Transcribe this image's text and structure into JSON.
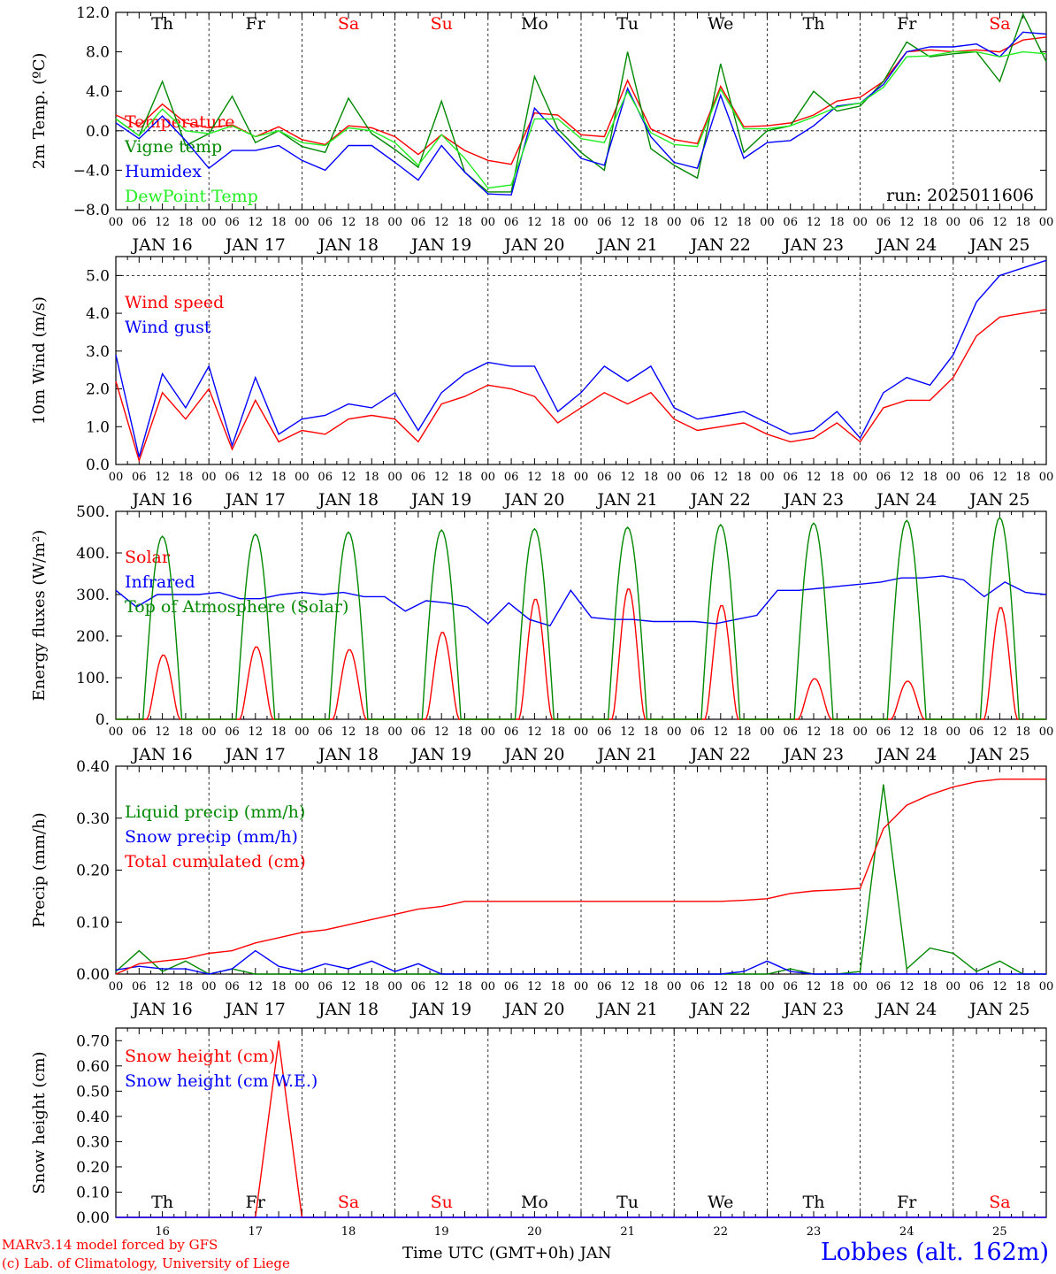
{
  "footer": {
    "credit_line1": "MARv3.14 model forced by GFS",
    "credit_line2": "(c) Lab. of Climatology, University of Liege",
    "x_axis_title": "Time UTC (GMT+0h) JAN",
    "station": "Lobbes (alt. 162m)"
  },
  "days": {
    "weekday_labels": [
      "Th",
      "Fr",
      "Sa",
      "Su",
      "Mo",
      "Tu",
      "We",
      "Th",
      "Fr",
      "Sa"
    ],
    "weekend_flags": [
      false,
      false,
      true,
      true,
      false,
      false,
      false,
      false,
      false,
      true
    ],
    "date_labels": [
      "JAN 16",
      "JAN 17",
      "JAN 18",
      "JAN 19",
      "JAN 20",
      "JAN 21",
      "JAN 22",
      "JAN 23",
      "JAN 24",
      "JAN 25"
    ],
    "short_date_labels": [
      "16",
      "17",
      "18",
      "19",
      "20",
      "21",
      "22",
      "23",
      "24",
      "25"
    ],
    "hour_ticks": [
      "00",
      "06",
      "12",
      "18"
    ],
    "final_tick": "00"
  },
  "colors": {
    "red": "#ff0000",
    "green": "#008800",
    "blue": "#0000ff",
    "lightgreen": "#22ee22"
  },
  "chart_data": [
    {
      "id": "temp",
      "type": "line",
      "ylabel": "2m Temp. (ºC)",
      "ylim": [
        -8,
        12
      ],
      "yticks": [
        "12.0",
        "8.0",
        "4.0",
        "0.0",
        "−4.0",
        "−8.0"
      ],
      "ytick_values": [
        12,
        8,
        4,
        0,
        -4,
        -8
      ],
      "ref_line": 0,
      "annotation": "run: 2025011606",
      "x_hours_step": 6,
      "series": [
        {
          "name": "Temperature",
          "color": "#ff0000",
          "values": [
            1.6,
            0.5,
            2.7,
            0.8,
            0.3,
            0.6,
            -0.6,
            0.4,
            -0.9,
            -1.4,
            0.5,
            0.3,
            -0.6,
            -2.4,
            -0.4,
            -2.0,
            -3.0,
            -3.4,
            1.8,
            1.6,
            -0.4,
            -0.6,
            5.1,
            0.2,
            -0.9,
            -1.3,
            4.5,
            0.4,
            0.5,
            0.8,
            1.6,
            3.0,
            3.4,
            5.0,
            8.0,
            8.2,
            8.0,
            8.2,
            8.0,
            9.2,
            9.5
          ]
        },
        {
          "name": "Vigne temp",
          "color": "#008800",
          "values": [
            1.2,
            -0.5,
            5.0,
            -1.5,
            -0.3,
            3.5,
            -1.2,
            0.0,
            -1.6,
            -2.2,
            3.3,
            -0.3,
            -1.9,
            -3.7,
            3.0,
            -4.2,
            -6.2,
            -6.2,
            5.5,
            0.2,
            -2.2,
            -4.0,
            8.0,
            -1.8,
            -3.5,
            -4.8,
            6.8,
            -2.2,
            0.0,
            0.5,
            4.0,
            2.0,
            2.5,
            5.0,
            9.0,
            7.5,
            7.8,
            8.0,
            5.0,
            11.8,
            7.0
          ]
        },
        {
          "name": "Humidex",
          "color": "#0000ff",
          "values": [
            0.8,
            -0.8,
            1.5,
            -1.0,
            -3.8,
            -2.0,
            -2.0,
            -1.5,
            -3.0,
            -4.0,
            -1.5,
            -1.5,
            -3.2,
            -5.0,
            -1.5,
            -4.2,
            -6.4,
            -6.5,
            2.3,
            -0.3,
            -2.8,
            -3.5,
            4.3,
            -0.6,
            -3.2,
            -3.8,
            3.6,
            -2.8,
            -1.2,
            -1.0,
            0.5,
            2.5,
            2.8,
            4.7,
            8.0,
            8.5,
            8.5,
            8.8,
            7.5,
            10.0,
            9.8
          ]
        },
        {
          "name": "DewPoint Temp",
          "color": "#22ee22",
          "values": [
            1.2,
            -0.5,
            2.2,
            0.0,
            -0.3,
            0.5,
            -0.6,
            0.0,
            -1.2,
            -1.5,
            0.3,
            0.0,
            -1.2,
            -3.5,
            -0.4,
            -2.8,
            -5.8,
            -5.5,
            1.2,
            1.2,
            -0.8,
            -1.2,
            4.0,
            -0.2,
            -1.4,
            -1.6,
            4.2,
            0.2,
            0.2,
            0.5,
            1.4,
            2.4,
            2.8,
            4.4,
            7.5,
            7.6,
            8.0,
            8.0,
            7.5,
            8.0,
            7.8
          ]
        }
      ]
    },
    {
      "id": "wind",
      "type": "line",
      "ylabel": "10m Wind (m/s)",
      "ylim": [
        0,
        5.5
      ],
      "yticks": [
        "5.0",
        "4.0",
        "3.0",
        "2.0",
        "1.0",
        "0.0"
      ],
      "ytick_values": [
        5,
        4,
        3,
        2,
        1,
        0
      ],
      "ref_line": 5,
      "x_hours_step": 6,
      "series": [
        {
          "name": "Wind speed",
          "color": "#ff0000",
          "values": [
            2.2,
            0.1,
            1.9,
            1.2,
            2.0,
            0.4,
            1.7,
            0.6,
            0.9,
            0.8,
            1.2,
            1.3,
            1.2,
            0.6,
            1.6,
            1.8,
            2.1,
            2.0,
            1.8,
            1.1,
            1.5,
            1.9,
            1.6,
            1.9,
            1.2,
            0.9,
            1.0,
            1.1,
            0.8,
            0.6,
            0.7,
            1.1,
            0.6,
            1.5,
            1.7,
            1.7,
            2.3,
            3.4,
            3.9,
            4.0,
            4.1
          ]
        },
        {
          "name": "Wind gust",
          "color": "#0000ff",
          "values": [
            2.9,
            0.2,
            2.4,
            1.5,
            2.6,
            0.5,
            2.3,
            0.8,
            1.2,
            1.3,
            1.6,
            1.5,
            1.9,
            0.9,
            1.9,
            2.4,
            2.7,
            2.6,
            2.6,
            1.4,
            1.9,
            2.6,
            2.2,
            2.6,
            1.5,
            1.2,
            1.3,
            1.4,
            1.1,
            0.8,
            0.9,
            1.4,
            0.7,
            1.9,
            2.3,
            2.1,
            2.9,
            4.3,
            5.0,
            5.2,
            5.4
          ]
        }
      ]
    },
    {
      "id": "energy",
      "type": "line",
      "ylabel": "Energy fluxes (W/m²)",
      "ylim": [
        0,
        500
      ],
      "yticks": [
        "500.",
        "400.",
        "300.",
        "200.",
        "100.",
        "0."
      ],
      "ytick_values": [
        500,
        400,
        300,
        200,
        100,
        0
      ],
      "x_hours_step": 1,
      "series": [
        {
          "name": "Solar",
          "color": "#ff0000",
          "days_peak": [
            155,
            175,
            168,
            210,
            290,
            315,
            275,
            98,
            92,
            270
          ]
        },
        {
          "name": "Infrared",
          "color": "#0000ff",
          "values": [
            310,
            270,
            300,
            300,
            300,
            305,
            290,
            290,
            300,
            305,
            300,
            305,
            295,
            295,
            260,
            285,
            280,
            270,
            230,
            280,
            240,
            225,
            310,
            245,
            240,
            240,
            235,
            235,
            235,
            230,
            240,
            250,
            310,
            310,
            315,
            320,
            325,
            330,
            340,
            340,
            345,
            335,
            295,
            330,
            305,
            300
          ]
        },
        {
          "name": "Top of Atmosphere (Solar)",
          "color": "#008800",
          "days_peak": [
            440,
            445,
            450,
            455,
            458,
            462,
            468,
            472,
            478,
            485
          ]
        }
      ]
    },
    {
      "id": "precip",
      "type": "line",
      "ylabel": "Precip (mm/h)",
      "ylim": [
        0,
        0.4
      ],
      "yticks": [
        "0.40",
        "0.30",
        "0.20",
        "0.10",
        "0.00"
      ],
      "ytick_values": [
        0.4,
        0.3,
        0.2,
        0.1,
        0.0
      ],
      "x_hours_step": 6,
      "series": [
        {
          "name": "Liquid precip (mm/h)",
          "color": "#008800",
          "values": [
            0.005,
            0.045,
            0.005,
            0.025,
            0.0,
            0.01,
            0.0,
            0.0,
            0.0,
            0.0,
            0.0,
            0.0,
            0.0,
            0.0,
            0.0,
            0.0,
            0.0,
            0.0,
            0.0,
            0.0,
            0.0,
            0.0,
            0.0,
            0.0,
            0.0,
            0.0,
            0.0,
            0.0,
            0.0,
            0.01,
            0.0,
            0.0,
            0.005,
            0.365,
            0.01,
            0.05,
            0.04,
            0.005,
            0.025,
            0.0,
            0.0
          ]
        },
        {
          "name": "Snow precip (mm/h)",
          "color": "#0000ff",
          "values": [
            0.008,
            0.015,
            0.01,
            0.01,
            0.0,
            0.01,
            0.045,
            0.015,
            0.005,
            0.02,
            0.01,
            0.025,
            0.005,
            0.02,
            0.0,
            0.0,
            0.0,
            0.0,
            0.0,
            0.0,
            0.0,
            0.0,
            0.0,
            0.0,
            0.0,
            0.0,
            0.0,
            0.005,
            0.025,
            0.005,
            0.0,
            0.0,
            0.0,
            0.0,
            0.0,
            0.0,
            0.0,
            0.0,
            0.0,
            0.0,
            0.0
          ]
        },
        {
          "name": "Total cumulated (cm)",
          "color": "#ff0000",
          "values": [
            0.0,
            0.02,
            0.025,
            0.03,
            0.04,
            0.045,
            0.06,
            0.07,
            0.08,
            0.085,
            0.095,
            0.105,
            0.115,
            0.125,
            0.13,
            0.14,
            0.14,
            0.14,
            0.14,
            0.14,
            0.14,
            0.14,
            0.14,
            0.14,
            0.14,
            0.14,
            0.14,
            0.142,
            0.145,
            0.155,
            0.16,
            0.162,
            0.165,
            0.28,
            0.325,
            0.345,
            0.36,
            0.37,
            0.375,
            0.375,
            0.375
          ]
        }
      ]
    },
    {
      "id": "snow",
      "type": "line",
      "ylabel": "Snow height (cm)",
      "ylim": [
        0,
        0.75
      ],
      "yticks": [
        "0.70",
        "0.60",
        "0.50",
        "0.40",
        "0.30",
        "0.20",
        "0.10",
        "0.00"
      ],
      "ytick_values": [
        0.7,
        0.6,
        0.5,
        0.4,
        0.3,
        0.2,
        0.1,
        0.0
      ],
      "x_hours_step": 6,
      "series": [
        {
          "name": "Snow height (cm)",
          "color": "#ff0000",
          "values": [
            0,
            0,
            0,
            0,
            0,
            0,
            0,
            0.7,
            0,
            0,
            0,
            0,
            0,
            0,
            0,
            0,
            0,
            0,
            0,
            0,
            0,
            0,
            0,
            0,
            0,
            0,
            0,
            0,
            0,
            0,
            0,
            0,
            0,
            0,
            0,
            0,
            0,
            0,
            0,
            0,
            0
          ]
        },
        {
          "name": "Snow height (cm W.E.)",
          "color": "#0000ff",
          "values": [
            0,
            0,
            0,
            0,
            0,
            0,
            0,
            0,
            0,
            0,
            0,
            0,
            0,
            0,
            0,
            0,
            0,
            0,
            0,
            0,
            0,
            0,
            0,
            0,
            0,
            0,
            0,
            0,
            0,
            0,
            0,
            0,
            0,
            0,
            0,
            0,
            0,
            0,
            0,
            0,
            0
          ]
        }
      ]
    }
  ]
}
